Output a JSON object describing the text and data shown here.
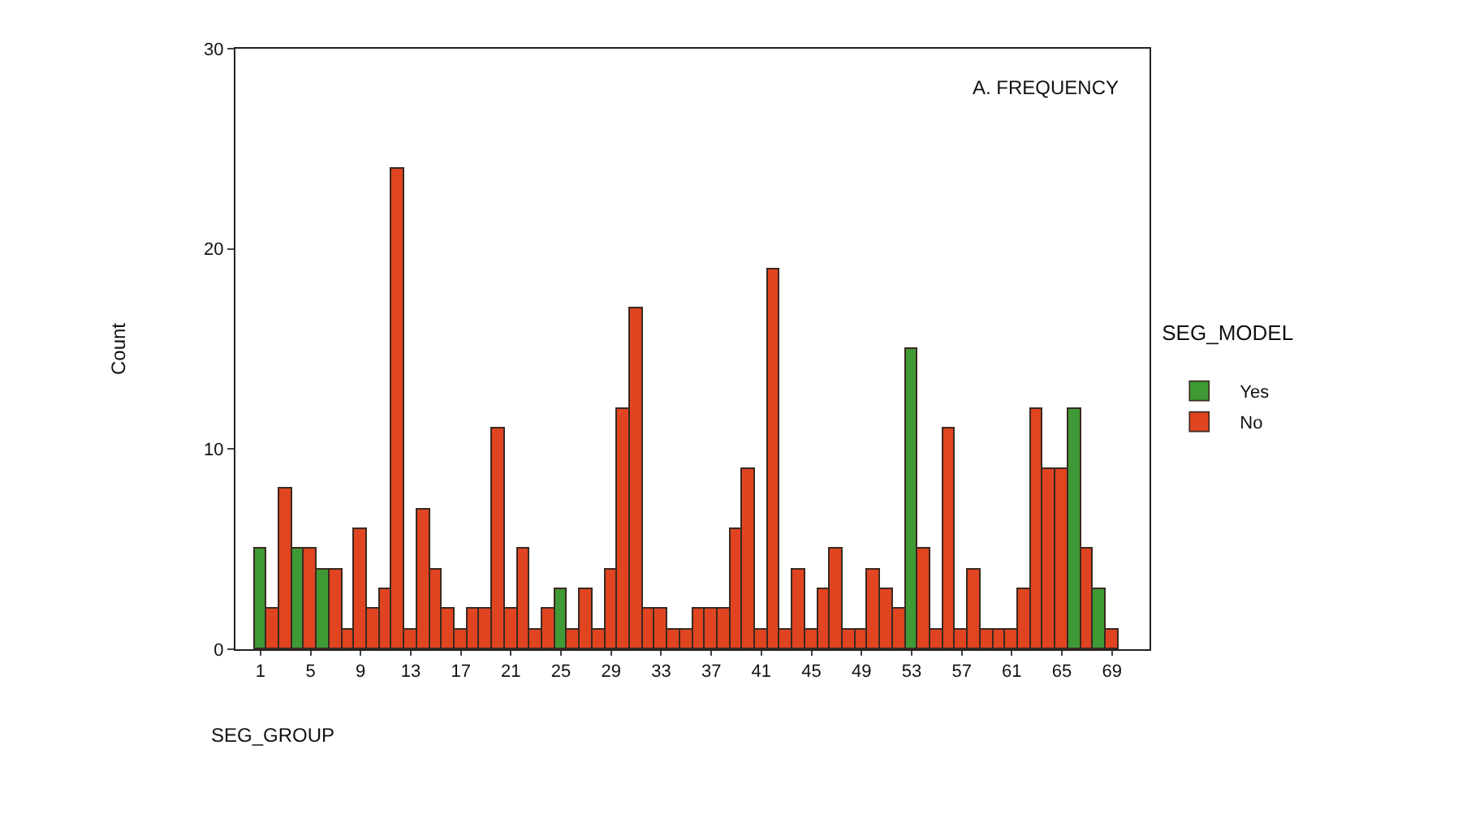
{
  "chart_data": {
    "type": "bar",
    "stacked": true,
    "xlabel": "SEG_GROUP",
    "ylabel": "Count",
    "legend_title": "SEG_MODEL",
    "legend": "right",
    "grid": false,
    "annotations": [
      "A. FREQUENCY"
    ],
    "x": [
      1,
      2,
      3,
      4,
      5,
      6,
      7,
      8,
      9,
      10,
      11,
      12,
      13,
      14,
      15,
      16,
      17,
      18,
      19,
      20,
      21,
      22,
      23,
      24,
      25,
      26,
      27,
      28,
      29,
      30,
      31,
      32,
      33,
      34,
      35,
      36,
      37,
      38,
      39,
      40,
      41,
      42,
      43,
      44,
      45,
      46,
      47,
      48,
      49,
      50,
      51,
      52,
      53,
      54,
      55,
      56,
      57,
      58,
      59,
      60,
      61,
      62,
      63,
      64,
      65,
      66,
      67,
      68,
      69
    ],
    "xlim": [
      -1,
      72
    ],
    "xticks": [
      1,
      5,
      9,
      13,
      17,
      21,
      25,
      29,
      33,
      37,
      41,
      45,
      49,
      53,
      57,
      61,
      65,
      69
    ],
    "ylim": [
      0,
      30
    ],
    "yticks": [
      0,
      10,
      20,
      30
    ],
    "series": [
      {
        "name": "Yes",
        "color": "#3f9a35",
        "values": [
          5,
          null,
          null,
          5,
          null,
          4,
          null,
          null,
          null,
          null,
          null,
          null,
          null,
          null,
          null,
          null,
          null,
          null,
          null,
          null,
          null,
          null,
          null,
          null,
          3,
          null,
          null,
          null,
          null,
          null,
          null,
          null,
          null,
          null,
          null,
          null,
          null,
          null,
          null,
          null,
          null,
          null,
          null,
          null,
          null,
          null,
          null,
          null,
          null,
          null,
          null,
          null,
          15,
          null,
          null,
          null,
          null,
          null,
          null,
          null,
          null,
          null,
          null,
          null,
          null,
          12,
          null,
          3,
          null
        ]
      },
      {
        "name": "No",
        "color": "#e04420",
        "values": [
          null,
          2,
          8,
          null,
          5,
          null,
          4,
          1,
          6,
          2,
          3,
          24,
          1,
          7,
          4,
          2,
          1,
          2,
          2,
          11,
          2,
          5,
          1,
          2,
          null,
          1,
          3,
          1,
          4,
          12,
          17,
          2,
          2,
          1,
          1,
          2,
          2,
          2,
          6,
          9,
          1,
          19,
          1,
          4,
          1,
          3,
          5,
          1,
          1,
          4,
          3,
          2,
          null,
          5,
          1,
          11,
          1,
          4,
          1,
          1,
          1,
          3,
          12,
          9,
          9,
          null,
          5,
          null,
          1
        ]
      }
    ]
  }
}
